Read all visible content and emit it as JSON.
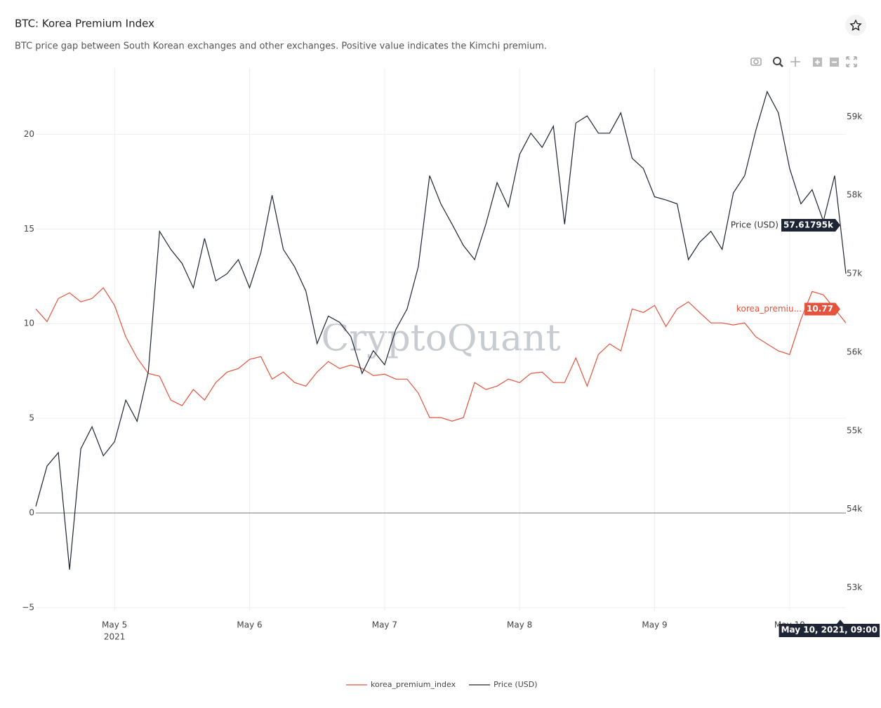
{
  "chart_data": {
    "type": "line",
    "title": "BTC: Korea Premium Index",
    "subtitle": "BTC price gap between South Korean exchanges and other exchanges. Positive value indicates the Kimchi premium.",
    "watermark": "CryptoQuant",
    "x": [
      "2021-05-04 10:00",
      "2021-05-04 12:00",
      "2021-05-04 14:00",
      "2021-05-04 16:00",
      "2021-05-04 18:00",
      "2021-05-04 20:00",
      "2021-05-04 22:00",
      "2021-05-05 00:00",
      "2021-05-05 02:00",
      "2021-05-05 04:00",
      "2021-05-05 06:00",
      "2021-05-05 08:00",
      "2021-05-05 10:00",
      "2021-05-05 12:00",
      "2021-05-05 14:00",
      "2021-05-05 16:00",
      "2021-05-05 18:00",
      "2021-05-05 20:00",
      "2021-05-05 22:00",
      "2021-05-06 00:00",
      "2021-05-06 02:00",
      "2021-05-06 04:00",
      "2021-05-06 06:00",
      "2021-05-06 08:00",
      "2021-05-06 10:00",
      "2021-05-06 12:00",
      "2021-05-06 14:00",
      "2021-05-06 16:00",
      "2021-05-06 18:00",
      "2021-05-06 20:00",
      "2021-05-06 22:00",
      "2021-05-07 00:00",
      "2021-05-07 02:00",
      "2021-05-07 04:00",
      "2021-05-07 06:00",
      "2021-05-07 08:00",
      "2021-05-07 10:00",
      "2021-05-07 12:00",
      "2021-05-07 14:00",
      "2021-05-07 16:00",
      "2021-05-07 18:00",
      "2021-05-07 20:00",
      "2021-05-07 22:00",
      "2021-05-08 00:00",
      "2021-05-08 02:00",
      "2021-05-08 04:00",
      "2021-05-08 06:00",
      "2021-05-08 08:00",
      "2021-05-08 10:00",
      "2021-05-08 12:00",
      "2021-05-08 14:00",
      "2021-05-08 16:00",
      "2021-05-08 18:00",
      "2021-05-08 20:00",
      "2021-05-08 22:00",
      "2021-05-09 00:00",
      "2021-05-09 02:00",
      "2021-05-09 04:00",
      "2021-05-09 06:00",
      "2021-05-09 08:00",
      "2021-05-09 10:00",
      "2021-05-09 12:00",
      "2021-05-09 14:00",
      "2021-05-09 16:00",
      "2021-05-09 18:00",
      "2021-05-09 20:00",
      "2021-05-09 22:00",
      "2021-05-10 00:00",
      "2021-05-10 02:00",
      "2021-05-10 04:00",
      "2021-05-10 06:00",
      "2021-05-10 08:00",
      "2021-05-10 10:00"
    ],
    "series": [
      {
        "name": "korea_premium_index",
        "color": "#e5533c",
        "axis": "y",
        "values": [
          10.78,
          10.11,
          11.33,
          11.63,
          11.15,
          11.33,
          11.89,
          10.96,
          9.3,
          8.19,
          7.37,
          7.22,
          5.96,
          5.67,
          6.52,
          5.96,
          6.89,
          7.44,
          7.63,
          8.11,
          8.26,
          7.07,
          7.44,
          6.89,
          6.7,
          7.44,
          8.0,
          7.63,
          7.81,
          7.63,
          7.26,
          7.33,
          7.07,
          7.07,
          6.33,
          5.04,
          5.04,
          4.85,
          5.04,
          6.89,
          6.52,
          6.7,
          7.07,
          6.89,
          7.37,
          7.44,
          6.89,
          6.89,
          8.19,
          6.7,
          8.37,
          8.93,
          8.56,
          10.78,
          10.59,
          10.96,
          9.85,
          10.78,
          11.15,
          10.59,
          10.04,
          10.04,
          9.93,
          10.04,
          9.3,
          8.93,
          8.56,
          8.37,
          10.22,
          11.7,
          11.52,
          10.78,
          10.04
        ]
      },
      {
        "name": "Price (USD)",
        "color": "#1d2433",
        "axis": "y2",
        "values": [
          54036,
          54550,
          54720,
          53230,
          54770,
          55050,
          54680,
          54860,
          55390,
          55120,
          55750,
          57540,
          57310,
          57130,
          56820,
          57450,
          56910,
          57000,
          57180,
          56820,
          57270,
          58000,
          57310,
          57090,
          56780,
          56110,
          56460,
          56380,
          56200,
          55730,
          56020,
          55840,
          56290,
          56550,
          57090,
          58250,
          57890,
          57630,
          57360,
          57180,
          57630,
          58160,
          57850,
          58520,
          58790,
          58610,
          58880,
          57630,
          58920,
          59010,
          58790,
          58790,
          59050,
          58470,
          58340,
          57980,
          57940,
          57890,
          57180,
          57400,
          57540,
          57310,
          58030,
          58250,
          58830,
          59320,
          59050,
          58340,
          57890,
          58070,
          57670,
          58250,
          57000
        ]
      }
    ],
    "xlim": [
      "2021-05-04 10:00",
      "2021-05-10 10:00"
    ],
    "xticks": [
      {
        "value": "2021-05-05 00:00",
        "label": "May 5"
      },
      {
        "value": "2021-05-06 00:00",
        "label": "May 6"
      },
      {
        "value": "2021-05-07 00:00",
        "label": "May 7"
      },
      {
        "value": "2021-05-08 00:00",
        "label": "May 8"
      },
      {
        "value": "2021-05-09 00:00",
        "label": "May 9"
      },
      {
        "value": "2021-05-10 00:00",
        "label": "May 10"
      }
    ],
    "x_year_label": "2021",
    "ylim": [
      -5.15,
      23.5
    ],
    "yticks": [
      {
        "value": -5,
        "label": "−5"
      },
      0,
      5,
      10,
      15,
      20
    ],
    "y2lim": [
      52710,
      59620
    ],
    "y2ticks": [
      {
        "value": 53000,
        "label": "53k"
      },
      {
        "value": 54000,
        "label": "54k"
      },
      {
        "value": 55000,
        "label": "55k"
      },
      {
        "value": 56000,
        "label": "56k"
      },
      {
        "value": 57000,
        "label": "57k"
      },
      {
        "value": 58000,
        "label": "58k"
      },
      {
        "value": 59000,
        "label": "59k"
      }
    ],
    "grid": true,
    "legend": "bottom",
    "hover": {
      "x": "2021-05-10 09:00",
      "label": "May 10, 2021, 09:00",
      "items": [
        {
          "name": "Price (USD)",
          "series": 1,
          "value": 57617.95,
          "label": "57.61795k"
        },
        {
          "name": "korea_premiu...",
          "series": 0,
          "value": 10.77,
          "label": "10.77"
        }
      ]
    }
  }
}
